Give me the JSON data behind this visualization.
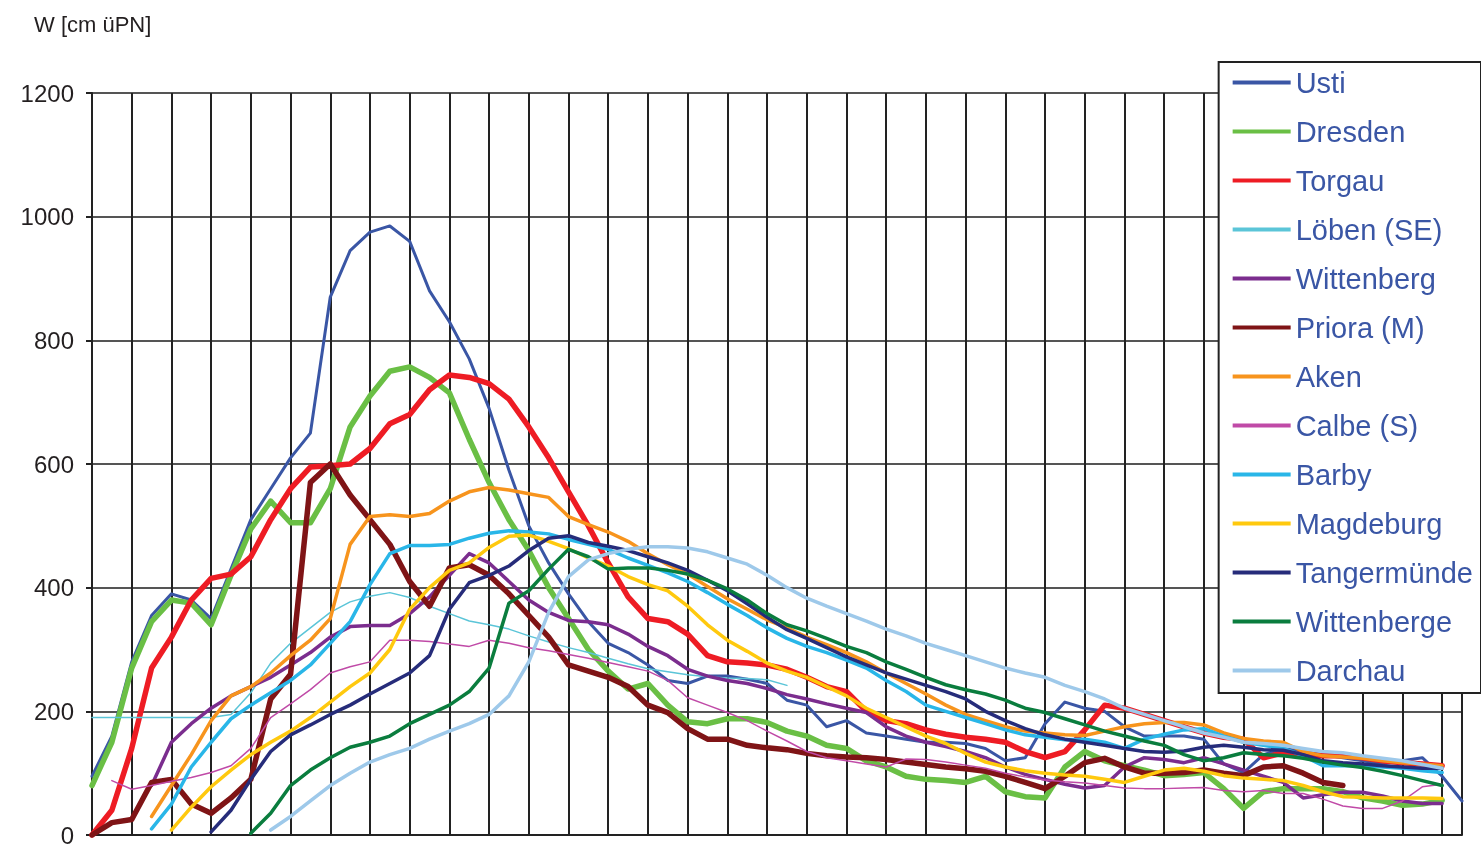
{
  "chart_data": {
    "type": "line",
    "ylabel": "W [cm üPN]",
    "categories": [
      null,
      null,
      null,
      null,
      null,
      null,
      null,
      null,
      null,
      null,
      null,
      null,
      null,
      null,
      null,
      null,
      null,
      null,
      null,
      null,
      null,
      null,
      null,
      null,
      null,
      null,
      null,
      null,
      null,
      null,
      null,
      null,
      null,
      null,
      null,
      null,
      null,
      null,
      null,
      null,
      null,
      null,
      null,
      null,
      null,
      null,
      null,
      null,
      null,
      null,
      null,
      null,
      null,
      null,
      null,
      null,
      null,
      null,
      null,
      null,
      null,
      null,
      null,
      null,
      null,
      null,
      null,
      null,
      null,
      null
    ],
    "ylim": [
      0,
      1200
    ],
    "yticks": [
      0,
      200,
      400,
      600,
      800,
      1000,
      1200
    ],
    "grid": true,
    "legend": "top right",
    "tick_labels": "y",
    "marker": "none",
    "line_style": "solid",
    "series": [
      {
        "name": "Usti",
        "color": "#3a56a5",
        "values": [
          95,
          160,
          280,
          355,
          390,
          380,
          350,
          430,
          510,
          560,
          610,
          650,
          870,
          945,
          975,
          985,
          960,
          880,
          830,
          770,
          690,
          590,
          500,
          440,
          390,
          345,
          310,
          295,
          275,
          250,
          245,
          257,
          257,
          252,
          245,
          218,
          210,
          175,
          185,
          165,
          160,
          155,
          150,
          150,
          148,
          140,
          120,
          125,
          180,
          215,
          205,
          200,
          175,
          160,
          160,
          160,
          155,
          115,
          101,
          130,
          140,
          135,
          130,
          125,
          120,
          115,
          120,
          125,
          95,
          55
        ]
      },
      {
        "name": "Dresden",
        "color": "#6abf45",
        "values": [
          80,
          150,
          270,
          345,
          380,
          375,
          340,
          420,
          495,
          540,
          505,
          505,
          560,
          660,
          710,
          750,
          757,
          740,
          715,
          640,
          570,
          510,
          460,
          400,
          350,
          300,
          265,
          236,
          245,
          210,
          183,
          180,
          188,
          188,
          182,
          168,
          160,
          145,
          140,
          120,
          110,
          95,
          90,
          88,
          85,
          95,
          70,
          62,
          60,
          110,
          135,
          120,
          112,
          105,
          96,
          98,
          101,
          75,
          43,
          70,
          75,
          75,
          75,
          70,
          60,
          55,
          48,
          50,
          56,
          null
        ]
      },
      {
        "name": "Torgau",
        "color": "#ee1c24",
        "values": [
          0,
          40,
          140,
          270,
          320,
          380,
          415,
          422,
          450,
          510,
          560,
          595,
          597,
          600,
          625,
          665,
          680,
          720,
          744,
          740,
          730,
          705,
          660,
          610,
          555,
          500,
          440,
          385,
          350,
          345,
          325,
          290,
          280,
          278,
          275,
          268,
          255,
          240,
          232,
          200,
          185,
          180,
          170,
          163,
          158,
          155,
          150,
          135,
          125,
          135,
          170,
          210,
          205,
          195,
          185,
          175,
          165,
          158,
          155,
          125,
          133,
          130,
          128,
          128,
          125,
          120,
          117,
          115,
          112,
          null
        ]
      },
      {
        "name": "Löben (SE)",
        "color": "#5bc5d8",
        "values": [
          190,
          190,
          190,
          190,
          190,
          190,
          190,
          195,
          230,
          278,
          310,
          335,
          360,
          377,
          386,
          392,
          384,
          370,
          358,
          346,
          340,
          333,
          322,
          312,
          303,
          295,
          286,
          277,
          269,
          264,
          259,
          256,
          254,
          253,
          251,
          242,
          null,
          null,
          null,
          null,
          null,
          null,
          null,
          null,
          null,
          null,
          null,
          null,
          null,
          null,
          null,
          null,
          null,
          null,
          null,
          null,
          null,
          null,
          null,
          null,
          null,
          null,
          null,
          null,
          null,
          null,
          null,
          null,
          null,
          null
        ]
      },
      {
        "name": "Wittenberg",
        "color": "#7b2d8e",
        "values": [
          null,
          null,
          null,
          80,
          150,
          180,
          205,
          225,
          240,
          255,
          275,
          295,
          320,
          337,
          339,
          339,
          358,
          385,
          420,
          455,
          440,
          410,
          380,
          360,
          347,
          345,
          340,
          325,
          305,
          290,
          268,
          257,
          250,
          245,
          237,
          227,
          220,
          212,
          205,
          198,
          175,
          160,
          150,
          143,
          135,
          125,
          110,
          98,
          90,
          82,
          76,
          80,
          110,
          125,
          122,
          117,
          125,
          115,
          105,
          95,
          85,
          60,
          65,
          69,
          69,
          63,
          55,
          51,
          51,
          null
        ]
      },
      {
        "name": "Priora (M)",
        "color": "#7f1416",
        "values": [
          0,
          20,
          25,
          85,
          90,
          50,
          35,
          60,
          90,
          220,
          260,
          570,
          600,
          550,
          510,
          470,
          410,
          370,
          432,
          437,
          420,
          390,
          355,
          320,
          275,
          265,
          255,
          240,
          210,
          198,
          172,
          155,
          155,
          145,
          141,
          138,
          132,
          128,
          126,
          125,
          122,
          118,
          114,
          110,
          107,
          103,
          95,
          85,
          75,
          95,
          117,
          124,
          110,
          100,
          100,
          101,
          105,
          100,
          96,
          110,
          112,
          100,
          85,
          80,
          null,
          null,
          null,
          null,
          null,
          null
        ]
      },
      {
        "name": "Aken",
        "color": "#f7941d",
        "values": [
          null,
          null,
          null,
          30,
          80,
          130,
          185,
          225,
          240,
          262,
          290,
          315,
          350,
          470,
          515,
          518,
          515,
          520,
          540,
          555,
          562,
          558,
          552,
          546,
          515,
          502,
          490,
          475,
          455,
          437,
          422,
          402,
          382,
          365,
          348,
          335,
          320,
          308,
          295,
          280,
          262,
          245,
          228,
          210,
          195,
          185,
          175,
          168,
          165,
          162,
          161,
          168,
          175,
          180,
          182,
          182,
          178,
          165,
          156,
          152,
          150,
          135,
          128,
          126,
          124,
          120,
          117,
          115,
          112,
          null
        ]
      },
      {
        "name": "Calbe (S)",
        "color": "#c04aa7",
        "values": [
          null,
          88,
          74,
          80,
          87,
          93,
          101,
          112,
          140,
          190,
          212,
          235,
          262,
          272,
          280,
          315,
          315,
          313,
          309,
          305,
          315,
          310,
          303,
          298,
          292,
          286,
          279,
          272,
          265,
          250,
          222,
          210,
          198,
          185,
          168,
          152,
          135,
          125,
          120,
          115,
          110,
          123,
          122,
          118,
          113,
          108,
          100,
          94,
          89,
          86,
          84,
          80,
          76,
          75,
          75,
          76,
          77,
          72,
          70,
          72,
          67,
          67,
          58,
          47,
          43,
          43,
          55,
          78,
          82,
          null
        ]
      },
      {
        "name": "Barby",
        "color": "#29b6e8",
        "values": [
          null,
          null,
          null,
          10,
          50,
          110,
          150,
          188,
          210,
          230,
          250,
          275,
          310,
          345,
          405,
          455,
          468,
          468,
          470,
          480,
          488,
          492,
          490,
          487,
          478,
          470,
          462,
          448,
          436,
          424,
          410,
          392,
          373,
          355,
          335,
          318,
          305,
          295,
          283,
          270,
          250,
          232,
          210,
          200,
          190,
          180,
          170,
          162,
          158,
          154,
          155,
          150,
          140,
          155,
          163,
          170,
          172,
          160,
          150,
          145,
          140,
          128,
          112,
          112,
          112,
          110,
          108,
          104,
          101,
          null
        ]
      },
      {
        "name": "Magdeburg",
        "color": "#ffc90e",
        "values": [
          null,
          null,
          null,
          null,
          8,
          45,
          78,
          105,
          130,
          150,
          168,
          190,
          215,
          240,
          262,
          300,
          365,
          400,
          428,
          440,
          465,
          483,
          485,
          475,
          463,
          448,
          435,
          418,
          405,
          395,
          370,
          340,
          315,
          297,
          278,
          265,
          255,
          240,
          225,
          205,
          190,
          175,
          160,
          148,
          132,
          118,
          110,
          104,
          100,
          97,
          95,
          90,
          85,
          95,
          105,
          108,
          103,
          96,
          92,
          90,
          88,
          80,
          70,
          62,
          61,
          60,
          60,
          60,
          59,
          null
        ]
      },
      {
        "name": "Tangermünde",
        "color": "#262c7a",
        "values": [
          null,
          null,
          null,
          null,
          null,
          null,
          5,
          40,
          90,
          135,
          162,
          178,
          195,
          210,
          228,
          245,
          262,
          290,
          365,
          408,
          420,
          435,
          460,
          480,
          484,
          473,
          467,
          460,
          450,
          440,
          428,
          412,
          395,
          374,
          352,
          332,
          318,
          303,
          288,
          275,
          262,
          252,
          242,
          232,
          220,
          200,
          185,
          172,
          162,
          155,
          150,
          145,
          140,
          135,
          134,
          136,
          142,
          145,
          142,
          138,
          137,
          130,
          120,
          117,
          115,
          112,
          110,
          108,
          108,
          null
        ]
      },
      {
        "name": "Wittenberge",
        "color": "#0a7d3e",
        "values": [
          null,
          null,
          null,
          null,
          null,
          null,
          null,
          null,
          3,
          35,
          80,
          105,
          125,
          142,
          150,
          160,
          180,
          195,
          210,
          232,
          270,
          375,
          395,
          430,
          462,
          450,
          430,
          432,
          432,
          428,
          422,
          412,
          398,
          380,
          358,
          340,
          330,
          318,
          305,
          295,
          280,
          268,
          255,
          243,
          235,
          228,
          218,
          205,
          198,
          188,
          178,
          168,
          160,
          152,
          145,
          130,
          120,
          125,
          133,
          130,
          128,
          124,
          118,
          113,
          109,
          103,
          96,
          88,
          80,
          null
        ]
      },
      {
        "name": "Darchau",
        "color": "#9ec9ea",
        "values": [
          null,
          null,
          null,
          null,
          null,
          null,
          null,
          null,
          null,
          8,
          30,
          55,
          80,
          100,
          118,
          130,
          140,
          155,
          168,
          180,
          195,
          225,
          280,
          360,
          418,
          445,
          455,
          462,
          466,
          466,
          464,
          458,
          448,
          438,
          420,
          400,
          383,
          370,
          358,
          346,
          333,
          322,
          310,
          300,
          290,
          280,
          270,
          262,
          255,
          242,
          232,
          220,
          205,
          195,
          185,
          175,
          165,
          158,
          150,
          148,
          145,
          140,
          135,
          133,
          128,
          124,
          120,
          114,
          108,
          null
        ]
      }
    ]
  }
}
